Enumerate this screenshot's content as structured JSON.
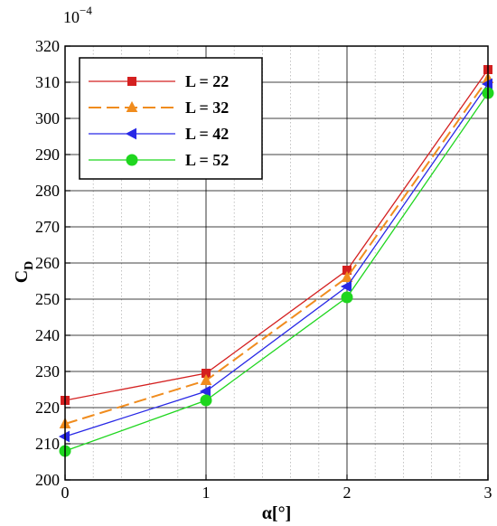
{
  "chart_data": {
    "type": "line",
    "xlabel": "α[°]",
    "ylabel": {
      "main": "C",
      "sub": "D"
    },
    "y_multiplier": {
      "base": "10",
      "exp": "−4"
    },
    "xlim": [
      0,
      3
    ],
    "ylim": [
      200,
      320
    ],
    "xticks": [
      0,
      1,
      2,
      3
    ],
    "yticks": [
      200,
      210,
      220,
      230,
      240,
      250,
      260,
      270,
      280,
      290,
      300,
      310,
      320
    ],
    "major_grid": true,
    "minor_grid": true,
    "legend_position": "top-left",
    "x": [
      0,
      1,
      2,
      3
    ],
    "series": [
      {
        "name": "L = 22",
        "values": [
          222,
          229.5,
          258,
          313.5
        ],
        "color": "#d42020",
        "dash": "solid",
        "marker": "square"
      },
      {
        "name": "L = 32",
        "values": [
          215.5,
          227.5,
          256,
          311
        ],
        "color": "#f08c1e",
        "dash": "dashed",
        "marker": "triangle"
      },
      {
        "name": "L = 42",
        "values": [
          212,
          224.5,
          253.5,
          309.5
        ],
        "color": "#2828e6",
        "dash": "solid",
        "marker": "triangle-left"
      },
      {
        "name": "L = 52",
        "values": [
          208,
          222,
          250.5,
          307
        ],
        "color": "#1fd61f",
        "dash": "solid",
        "marker": "circle"
      }
    ]
  }
}
